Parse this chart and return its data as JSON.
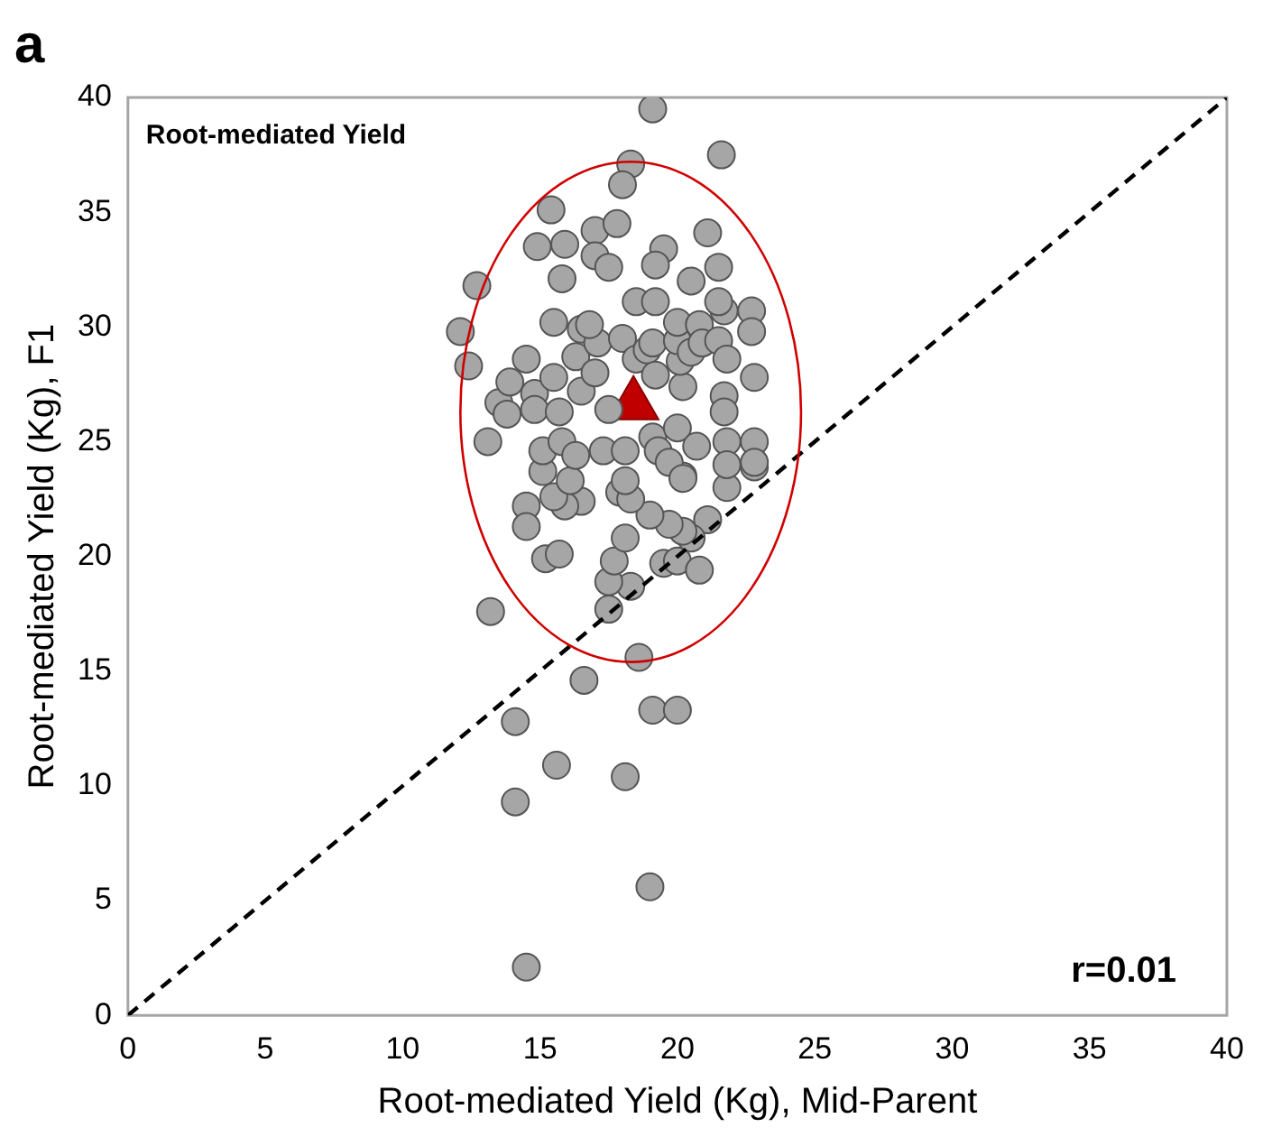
{
  "chart_data": {
    "type": "scatter",
    "title": "a",
    "xlabel": "Root-mediated Yield (Kg), Mid-Parent",
    "ylabel": "Root-mediated Yield (Kg), F1",
    "annotations": [
      "Root-mediated Yield",
      "r=0.01"
    ],
    "xlim": [
      0,
      40
    ],
    "ylim": [
      0,
      40
    ],
    "xticks": [
      0,
      5,
      10,
      15,
      20,
      25,
      30,
      35,
      40
    ],
    "yticks": [
      0,
      5,
      10,
      15,
      20,
      25,
      30,
      35,
      40
    ],
    "grid": false,
    "legend": false,
    "series": [
      {
        "type": "line",
        "color": "#000000",
        "line_style": "dashed",
        "marker": "none",
        "x": [
          0,
          40
        ],
        "values": [
          0,
          40
        ]
      },
      {
        "color": "#a6a6a6",
        "marker": "circle",
        "x": [
          18.6,
          16.6,
          14.1,
          19.1,
          20.0,
          15.6,
          18.1,
          14.1,
          19.0,
          14.5,
          13.2,
          17.5,
          18.3,
          17.5,
          17.7,
          18.1,
          15.2,
          15.7,
          19.5,
          20.0,
          20.8,
          21.1,
          20.5,
          20.2,
          19.7,
          19.0,
          14.5,
          14.5,
          16.5,
          15.9,
          15.5,
          17.9,
          18.3,
          21.8,
          15.1,
          20.2,
          22.8,
          12.1,
          12.4,
          13.1,
          13.5,
          13.8,
          13.9,
          14.5,
          14.8,
          14.8,
          15.1,
          15.5,
          15.5,
          15.7,
          15.8,
          16.1,
          16.3,
          16.3,
          16.5,
          16.5,
          17.0,
          17.1,
          17.3,
          17.5,
          18.1,
          18.1,
          18.0,
          18.5,
          18.9,
          19.1,
          19.2,
          19.1,
          19.3,
          19.7,
          20.0,
          20.2,
          20.1,
          20.0,
          20.0,
          20.2,
          20.7,
          20.8,
          20.5,
          20.9,
          21.5,
          21.8,
          21.7,
          21.7,
          21.8,
          21.8,
          22.7,
          22.7,
          22.8,
          22.8,
          22.8,
          21.7,
          18.5,
          19.2,
          16.8,
          19.1,
          21.6,
          18.3,
          18.0,
          15.4,
          14.9,
          15.9,
          17.0,
          17.8,
          17.0,
          17.5,
          15.8,
          19.5,
          19.2,
          21.1,
          21.5,
          20.5,
          12.7,
          21.5
        ],
        "values": [
          15.6,
          14.6,
          12.8,
          13.3,
          13.3,
          10.9,
          10.4,
          9.3,
          5.6,
          2.1,
          17.6,
          17.7,
          18.7,
          18.9,
          19.8,
          20.8,
          19.9,
          20.1,
          19.7,
          19.8,
          19.4,
          21.6,
          20.8,
          21.1,
          21.4,
          21.8,
          22.2,
          21.3,
          22.4,
          22.2,
          22.6,
          22.8,
          22.5,
          23.0,
          23.7,
          23.5,
          23.9,
          29.8,
          28.3,
          25.0,
          26.7,
          26.2,
          27.6,
          28.6,
          27.1,
          26.4,
          24.6,
          30.2,
          27.8,
          26.3,
          25.0,
          23.3,
          24.4,
          28.7,
          29.9,
          27.2,
          28.0,
          29.3,
          24.6,
          26.4,
          23.3,
          24.6,
          29.5,
          28.6,
          29.0,
          29.3,
          27.9,
          25.2,
          24.6,
          24.1,
          25.6,
          27.4,
          28.5,
          29.4,
          30.2,
          23.4,
          24.8,
          30.1,
          28.9,
          29.3,
          29.4,
          28.6,
          27.0,
          26.3,
          25.0,
          24.0,
          30.7,
          29.8,
          27.8,
          25.0,
          24.1,
          30.7,
          31.1,
          31.1,
          30.1,
          39.5,
          37.5,
          37.1,
          36.2,
          35.1,
          33.5,
          33.6,
          34.2,
          34.5,
          33.1,
          32.6,
          32.1,
          33.4,
          32.7,
          34.1,
          32.6,
          32.0,
          31.8,
          31.1
        ]
      },
      {
        "color": "#c00000",
        "marker": "triangle",
        "x": [
          18.4
        ],
        "values": [
          26.6
        ]
      }
    ]
  }
}
